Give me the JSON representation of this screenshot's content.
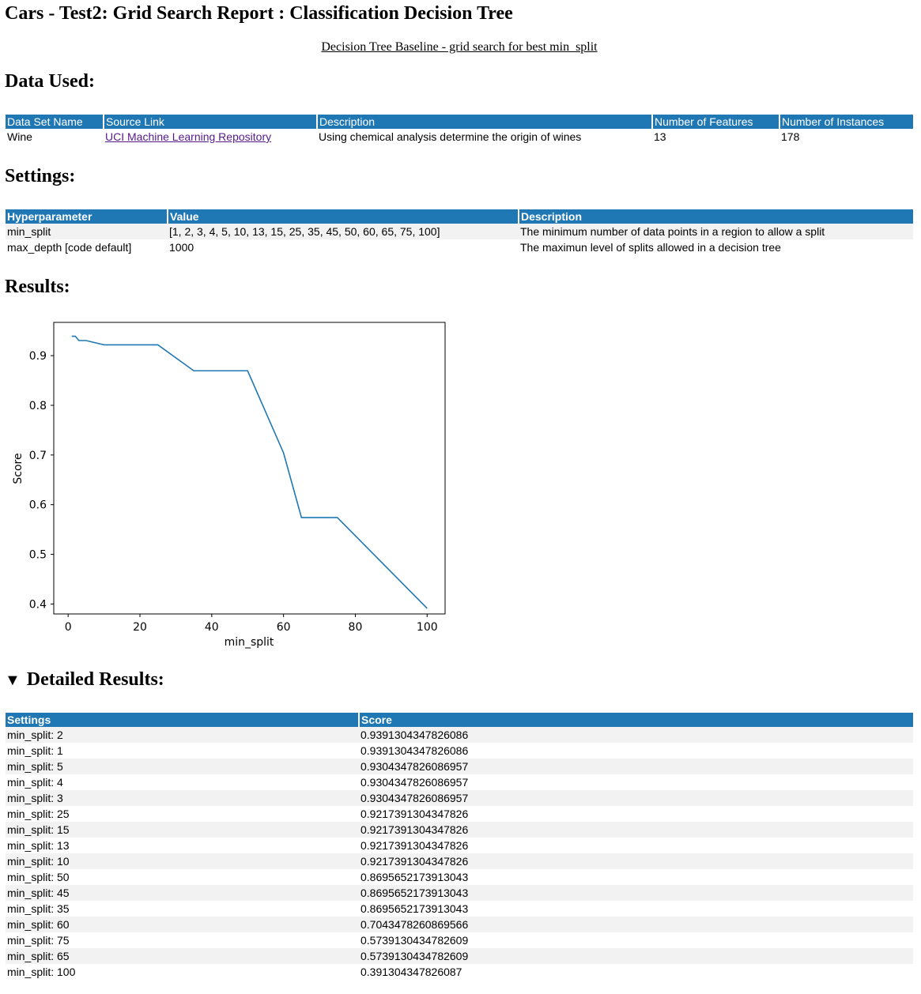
{
  "title": "Cars - Test2: Grid Search Report : Classification Decision Tree",
  "subtitle": "Decision Tree Baseline - grid search for best min_split",
  "sections": {
    "data_used": "Data Used:",
    "settings": "Settings:",
    "results": "Results:",
    "detailed": "Detailed Results:"
  },
  "data_table": {
    "headers": [
      "Data Set Name",
      "Source Link",
      "Description",
      "Number of Features",
      "Number of Instances"
    ],
    "row": {
      "name": "Wine",
      "source": "UCI Machine Learning Repository",
      "description": "Using chemical analysis determine the origin of wines",
      "features": "13",
      "instances": "178"
    }
  },
  "settings_table": {
    "headers": [
      "Hyperparameter",
      "Value",
      "Description"
    ],
    "rows": [
      {
        "param": "min_split",
        "value": "[1, 2, 3, 4, 5, 10, 13, 15, 25, 35, 45, 50, 60, 65, 75, 100]",
        "description": "The minimum number of data points in a region to allow a split"
      },
      {
        "param": "max_depth [code default]",
        "value": "1000",
        "description": "The maximun level of splits allowed in a decision tree"
      }
    ]
  },
  "chart_data": {
    "type": "line",
    "xlabel": "min_split",
    "ylabel": "Score",
    "xlim": [
      -4,
      105
    ],
    "ylim": [
      0.38,
      0.967
    ],
    "xticks": [
      0,
      20,
      40,
      60,
      80,
      100
    ],
    "yticks": [
      0.4,
      0.5,
      0.6,
      0.7,
      0.8,
      0.9
    ],
    "grid": false,
    "series": [
      {
        "color": "#1f77b4",
        "x": [
          1,
          2,
          3,
          4,
          5,
          10,
          13,
          15,
          25,
          35,
          45,
          50,
          60,
          65,
          75,
          100
        ],
        "y": [
          0.9391304347826086,
          0.9391304347826086,
          0.9304347826086957,
          0.9304347826086957,
          0.9304347826086957,
          0.9217391304347826,
          0.9217391304347826,
          0.9217391304347826,
          0.9217391304347826,
          0.8695652173913043,
          0.8695652173913043,
          0.8695652173913043,
          0.7043478260869566,
          0.5739130434782609,
          0.5739130434782609,
          0.391304347826087
        ]
      }
    ]
  },
  "detailed_table": {
    "headers": [
      "Settings",
      "Score"
    ],
    "rows": [
      {
        "setting": "min_split: 2",
        "score": "0.9391304347826086"
      },
      {
        "setting": "min_split: 1",
        "score": "0.9391304347826086"
      },
      {
        "setting": "min_split: 5",
        "score": "0.9304347826086957"
      },
      {
        "setting": "min_split: 4",
        "score": "0.9304347826086957"
      },
      {
        "setting": "min_split: 3",
        "score": "0.9304347826086957"
      },
      {
        "setting": "min_split: 25",
        "score": "0.9217391304347826"
      },
      {
        "setting": "min_split: 15",
        "score": "0.9217391304347826"
      },
      {
        "setting": "min_split: 13",
        "score": "0.9217391304347826"
      },
      {
        "setting": "min_split: 10",
        "score": "0.9217391304347826"
      },
      {
        "setting": "min_split: 50",
        "score": "0.8695652173913043"
      },
      {
        "setting": "min_split: 45",
        "score": "0.8695652173913043"
      },
      {
        "setting": "min_split: 35",
        "score": "0.8695652173913043"
      },
      {
        "setting": "min_split: 60",
        "score": "0.7043478260869566"
      },
      {
        "setting": "min_split: 75",
        "score": "0.5739130434782609"
      },
      {
        "setting": "min_split: 65",
        "score": "0.5739130434782609"
      },
      {
        "setting": "min_split: 100",
        "score": "0.391304347826087"
      }
    ]
  }
}
